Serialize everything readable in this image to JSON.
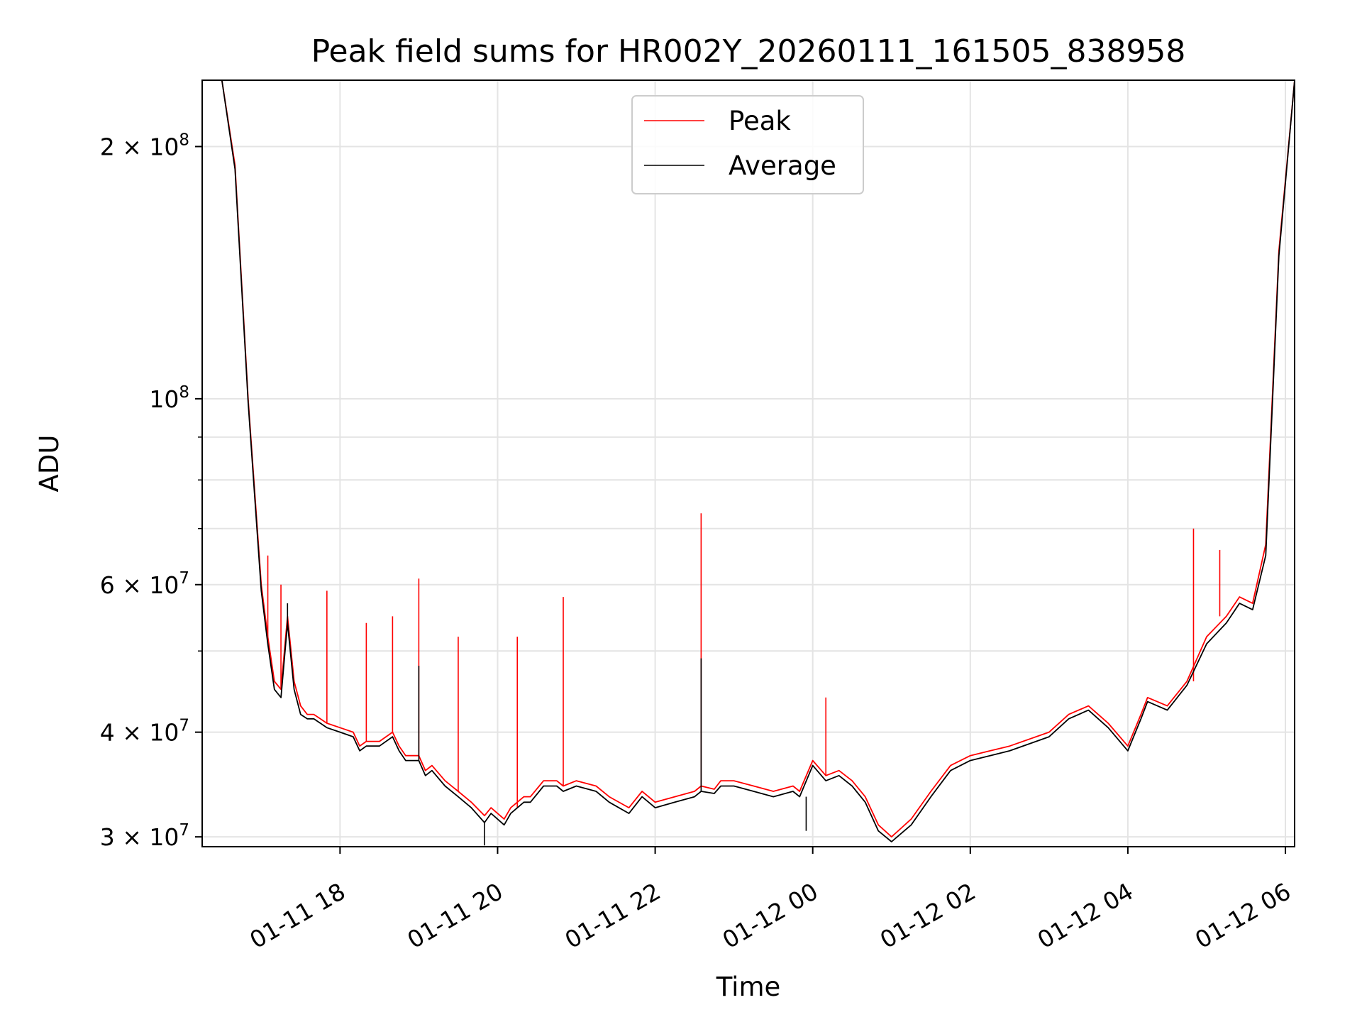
{
  "chart_data": {
    "type": "line",
    "title": "Peak field sums for HR002Y_20260111_161505_838958",
    "xlabel": "Time",
    "ylabel": "ADU",
    "yscale": "log",
    "xlim": [
      "2026-01-11 16:15",
      "2026-01-12 06:07"
    ],
    "ylim": [
      29200000,
      240000000
    ],
    "grid": true,
    "legend_position": "top-center",
    "x_tick_labels": [
      "01-11 18",
      "01-11 20",
      "01-11 22",
      "01-12 00",
      "01-12 02",
      "01-12 04",
      "01-12 06"
    ],
    "y_tick_labels": [
      {
        "mantissa": "3",
        "exponent": "7",
        "value": 30000000
      },
      {
        "mantissa": "4",
        "exponent": "7",
        "value": 40000000
      },
      {
        "mantissa": "6",
        "exponent": "7",
        "value": 60000000
      },
      {
        "mantissa": "",
        "exponent": "8",
        "value": 100000000
      },
      {
        "mantissa": "2",
        "exponent": "8",
        "value": 200000000
      }
    ],
    "series": [
      {
        "name": "Peak",
        "color": "#ff0000",
        "x": [
          "2026-01-11 16:15",
          "2026-01-11 16:30",
          "2026-01-11 16:40",
          "2026-01-11 16:50",
          "2026-01-11 17:00",
          "2026-01-11 17:05",
          "2026-01-11 17:10",
          "2026-01-11 17:15",
          "2026-01-11 17:20",
          "2026-01-11 17:25",
          "2026-01-11 17:30",
          "2026-01-11 17:35",
          "2026-01-11 17:40",
          "2026-01-11 17:45",
          "2026-01-11 17:50",
          "2026-01-11 18:00",
          "2026-01-11 18:10",
          "2026-01-11 18:15",
          "2026-01-11 18:20",
          "2026-01-11 18:30",
          "2026-01-11 18:40",
          "2026-01-11 18:45",
          "2026-01-11 18:50",
          "2026-01-11 19:00",
          "2026-01-11 19:05",
          "2026-01-11 19:10",
          "2026-01-11 19:20",
          "2026-01-11 19:30",
          "2026-01-11 19:40",
          "2026-01-11 19:50",
          "2026-01-11 19:55",
          "2026-01-11 20:05",
          "2026-01-11 20:10",
          "2026-01-11 20:20",
          "2026-01-11 20:25",
          "2026-01-11 20:35",
          "2026-01-11 20:45",
          "2026-01-11 20:50",
          "2026-01-11 21:00",
          "2026-01-11 21:15",
          "2026-01-11 21:25",
          "2026-01-11 21:40",
          "2026-01-11 21:50",
          "2026-01-11 22:00",
          "2026-01-11 22:15",
          "2026-01-11 22:30",
          "2026-01-11 22:35",
          "2026-01-11 22:45",
          "2026-01-11 22:50",
          "2026-01-11 23:00",
          "2026-01-11 23:15",
          "2026-01-11 23:30",
          "2026-01-11 23:45",
          "2026-01-11 23:50",
          "2026-01-12 00:00",
          "2026-01-12 00:10",
          "2026-01-12 00:20",
          "2026-01-12 00:30",
          "2026-01-12 00:40",
          "2026-01-12 00:50",
          "2026-01-12 01:00",
          "2026-01-12 01:15",
          "2026-01-12 01:30",
          "2026-01-12 01:45",
          "2026-01-12 02:00",
          "2026-01-12 02:30",
          "2026-01-12 03:00",
          "2026-01-12 03:15",
          "2026-01-12 03:30",
          "2026-01-12 03:45",
          "2026-01-12 04:00",
          "2026-01-12 04:10",
          "2026-01-12 04:15",
          "2026-01-12 04:30",
          "2026-01-12 04:45",
          "2026-01-12 05:00",
          "2026-01-12 05:15",
          "2026-01-12 05:25",
          "2026-01-12 05:35",
          "2026-01-12 05:45",
          "2026-01-12 05:55",
          "2026-01-12 06:07"
        ],
        "values": [
          240000000,
          240000000,
          190000000,
          100000000,
          60000000,
          52000000,
          46000000,
          45000000,
          55000000,
          46000000,
          43000000,
          42000000,
          42000000,
          41500000,
          41000000,
          40500000,
          40000000,
          38500000,
          39000000,
          39000000,
          40000000,
          38500000,
          37500000,
          37500000,
          36000000,
          36500000,
          35000000,
          34000000,
          33000000,
          31800000,
          32500000,
          31500000,
          32500000,
          33500000,
          33500000,
          35000000,
          35000000,
          34500000,
          35000000,
          34500000,
          33500000,
          32500000,
          34000000,
          33000000,
          33500000,
          34000000,
          34500000,
          34200000,
          35000000,
          35000000,
          34500000,
          34000000,
          34500000,
          34000000,
          37000000,
          35500000,
          36000000,
          35000000,
          33500000,
          31000000,
          30000000,
          31500000,
          34000000,
          36500000,
          37500000,
          38500000,
          40000000,
          42000000,
          43000000,
          41000000,
          38500000,
          42000000,
          44000000,
          43000000,
          46000000,
          52000000,
          55000000,
          58000000,
          57000000,
          67000000,
          150000000,
          240000000
        ],
        "spikes": [
          {
            "x": "2026-01-11 17:05",
            "value": 65000000
          },
          {
            "x": "2026-01-11 17:15",
            "value": 60000000
          },
          {
            "x": "2026-01-11 17:50",
            "value": 59000000
          },
          {
            "x": "2026-01-11 18:20",
            "value": 54000000
          },
          {
            "x": "2026-01-11 18:40",
            "value": 55000000
          },
          {
            "x": "2026-01-11 19:00",
            "value": 61000000
          },
          {
            "x": "2026-01-11 19:30",
            "value": 52000000
          },
          {
            "x": "2026-01-11 20:15",
            "value": 52000000
          },
          {
            "x": "2026-01-11 20:50",
            "value": 58000000
          },
          {
            "x": "2026-01-11 22:35",
            "value": 73000000
          },
          {
            "x": "2026-01-12 00:10",
            "value": 44000000
          },
          {
            "x": "2026-01-12 04:50",
            "value": 70000000
          },
          {
            "x": "2026-01-12 05:10",
            "value": 66000000
          }
        ]
      },
      {
        "name": "Average",
        "color": "#000000",
        "x": [
          "2026-01-11 16:15",
          "2026-01-11 16:30",
          "2026-01-11 16:40",
          "2026-01-11 16:50",
          "2026-01-11 17:00",
          "2026-01-11 17:05",
          "2026-01-11 17:10",
          "2026-01-11 17:15",
          "2026-01-11 17:20",
          "2026-01-11 17:25",
          "2026-01-11 17:30",
          "2026-01-11 17:35",
          "2026-01-11 17:40",
          "2026-01-11 17:45",
          "2026-01-11 17:50",
          "2026-01-11 18:00",
          "2026-01-11 18:10",
          "2026-01-11 18:15",
          "2026-01-11 18:20",
          "2026-01-11 18:30",
          "2026-01-11 18:40",
          "2026-01-11 18:45",
          "2026-01-11 18:50",
          "2026-01-11 19:00",
          "2026-01-11 19:05",
          "2026-01-11 19:10",
          "2026-01-11 19:20",
          "2026-01-11 19:30",
          "2026-01-11 19:40",
          "2026-01-11 19:50",
          "2026-01-11 19:55",
          "2026-01-11 20:05",
          "2026-01-11 20:10",
          "2026-01-11 20:20",
          "2026-01-11 20:25",
          "2026-01-11 20:35",
          "2026-01-11 20:45",
          "2026-01-11 20:50",
          "2026-01-11 21:00",
          "2026-01-11 21:15",
          "2026-01-11 21:25",
          "2026-01-11 21:40",
          "2026-01-11 21:50",
          "2026-01-11 22:00",
          "2026-01-11 22:15",
          "2026-01-11 22:30",
          "2026-01-11 22:35",
          "2026-01-11 22:45",
          "2026-01-11 22:50",
          "2026-01-11 23:00",
          "2026-01-11 23:15",
          "2026-01-11 23:30",
          "2026-01-11 23:45",
          "2026-01-11 23:50",
          "2026-01-12 00:00",
          "2026-01-12 00:10",
          "2026-01-12 00:20",
          "2026-01-12 00:30",
          "2026-01-12 00:40",
          "2026-01-12 00:50",
          "2026-01-12 01:00",
          "2026-01-12 01:15",
          "2026-01-12 01:30",
          "2026-01-12 01:45",
          "2026-01-12 02:00",
          "2026-01-12 02:30",
          "2026-01-12 03:00",
          "2026-01-12 03:15",
          "2026-01-12 03:30",
          "2026-01-12 03:45",
          "2026-01-12 04:00",
          "2026-01-12 04:10",
          "2026-01-12 04:15",
          "2026-01-12 04:30",
          "2026-01-12 04:45",
          "2026-01-12 05:00",
          "2026-01-12 05:15",
          "2026-01-12 05:25",
          "2026-01-12 05:35",
          "2026-01-12 05:45",
          "2026-01-12 05:55",
          "2026-01-12 06:07"
        ],
        "values": [
          240000000,
          240000000,
          188000000,
          99000000,
          59000000,
          51000000,
          45000000,
          44000000,
          54000000,
          45000000,
          42000000,
          41500000,
          41500000,
          41000000,
          40500000,
          40000000,
          39500000,
          38000000,
          38500000,
          38500000,
          39500000,
          38000000,
          37000000,
          37000000,
          35500000,
          36000000,
          34500000,
          33500000,
          32500000,
          31200000,
          32000000,
          31000000,
          32000000,
          33000000,
          33000000,
          34500000,
          34500000,
          34000000,
          34500000,
          34000000,
          33000000,
          32000000,
          33500000,
          32500000,
          33000000,
          33500000,
          34000000,
          33800000,
          34500000,
          34500000,
          34000000,
          33500000,
          34000000,
          33500000,
          36500000,
          35000000,
          35500000,
          34500000,
          33000000,
          30500000,
          29600000,
          31000000,
          33500000,
          36000000,
          37000000,
          38000000,
          39500000,
          41500000,
          42500000,
          40500000,
          38000000,
          41500000,
          43500000,
          42500000,
          45500000,
          51000000,
          54000000,
          57000000,
          56000000,
          65000000,
          148000000,
          240000000
        ],
        "spikes": [
          {
            "x": "2026-01-11 17:20",
            "value": 57000000
          },
          {
            "x": "2026-01-11 19:00",
            "value": 48000000
          },
          {
            "x": "2026-01-11 19:50",
            "value": 29300000
          },
          {
            "x": "2026-01-11 22:35",
            "value": 49000000
          },
          {
            "x": "2026-01-11 23:55",
            "value": 30500000
          }
        ]
      }
    ]
  }
}
